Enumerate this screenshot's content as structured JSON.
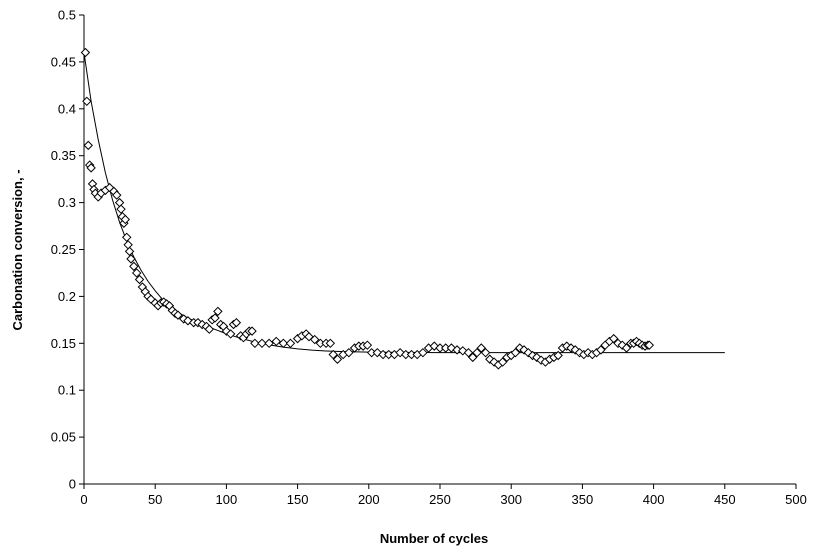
{
  "chart_data": {
    "type": "scatter",
    "title": "",
    "xlabel": "Number of cycles",
    "ylabel": "Carbonation conversion, -",
    "xlim": [
      0,
      500
    ],
    "ylim": [
      0,
      0.5
    ],
    "x_ticks": [
      0,
      50,
      100,
      150,
      200,
      250,
      300,
      350,
      400,
      450,
      500
    ],
    "y_ticks": [
      0,
      0.05,
      0.1,
      0.15,
      0.2,
      0.25,
      0.3,
      0.35,
      0.4,
      0.45,
      0.5
    ],
    "x_tick_labels": [
      "0",
      "50",
      "100",
      "150",
      "200",
      "250",
      "300",
      "350",
      "400",
      "450",
      "500"
    ],
    "y_tick_labels": [
      "0",
      "0.05",
      "0.1",
      "0.15",
      "0.2",
      "0.25",
      "0.3",
      "0.35",
      "0.4",
      "0.45",
      "0.5"
    ],
    "grid": false,
    "legend": "none",
    "marker": "diamond-open",
    "series": [
      {
        "kind": "scatter",
        "points": [
          [
            1,
            0.46
          ],
          [
            2,
            0.408
          ],
          [
            3,
            0.361
          ],
          [
            4,
            0.34
          ],
          [
            5,
            0.337
          ],
          [
            6,
            0.32
          ],
          [
            7,
            0.314
          ],
          [
            8,
            0.31
          ],
          [
            10,
            0.306
          ],
          [
            12,
            0.31
          ],
          [
            15,
            0.313
          ],
          [
            18,
            0.316
          ],
          [
            21,
            0.312
          ],
          [
            23,
            0.308
          ],
          [
            25,
            0.3
          ],
          [
            26,
            0.293
          ],
          [
            27,
            0.285
          ],
          [
            28,
            0.278
          ],
          [
            29,
            0.282
          ],
          [
            30,
            0.263
          ],
          [
            31,
            0.255
          ],
          [
            32,
            0.248
          ],
          [
            33,
            0.24
          ],
          [
            35,
            0.232
          ],
          [
            37,
            0.225
          ],
          [
            39,
            0.218
          ],
          [
            41,
            0.21
          ],
          [
            43,
            0.205
          ],
          [
            45,
            0.2
          ],
          [
            47,
            0.197
          ],
          [
            50,
            0.193
          ],
          [
            52,
            0.19
          ],
          [
            54,
            0.193
          ],
          [
            56,
            0.194
          ],
          [
            58,
            0.192
          ],
          [
            60,
            0.19
          ],
          [
            62,
            0.185
          ],
          [
            64,
            0.182
          ],
          [
            66,
            0.18
          ],
          [
            70,
            0.176
          ],
          [
            73,
            0.174
          ],
          [
            77,
            0.172
          ],
          [
            80,
            0.172
          ],
          [
            83,
            0.17
          ],
          [
            86,
            0.168
          ],
          [
            88,
            0.165
          ],
          [
            90,
            0.175
          ],
          [
            92,
            0.177
          ],
          [
            94,
            0.184
          ],
          [
            96,
            0.17
          ],
          [
            98,
            0.168
          ],
          [
            100,
            0.163
          ],
          [
            103,
            0.16
          ],
          [
            105,
            0.17
          ],
          [
            107,
            0.172
          ],
          [
            110,
            0.158
          ],
          [
            112,
            0.156
          ],
          [
            114,
            0.16
          ],
          [
            116,
            0.163
          ],
          [
            118,
            0.163
          ],
          [
            120,
            0.15
          ],
          [
            125,
            0.15
          ],
          [
            130,
            0.15
          ],
          [
            135,
            0.152
          ],
          [
            140,
            0.15
          ],
          [
            145,
            0.15
          ],
          [
            150,
            0.155
          ],
          [
            153,
            0.158
          ],
          [
            156,
            0.16
          ],
          [
            158,
            0.157
          ],
          [
            162,
            0.154
          ],
          [
            166,
            0.15
          ],
          [
            170,
            0.15
          ],
          [
            173,
            0.15
          ],
          [
            175,
            0.138
          ],
          [
            178,
            0.133
          ],
          [
            182,
            0.138
          ],
          [
            186,
            0.14
          ],
          [
            190,
            0.145
          ],
          [
            193,
            0.147
          ],
          [
            196,
            0.147
          ],
          [
            199,
            0.148
          ],
          [
            202,
            0.14
          ],
          [
            206,
            0.14
          ],
          [
            210,
            0.138
          ],
          [
            214,
            0.138
          ],
          [
            218,
            0.138
          ],
          [
            222,
            0.14
          ],
          [
            226,
            0.138
          ],
          [
            230,
            0.138
          ],
          [
            234,
            0.138
          ],
          [
            238,
            0.14
          ],
          [
            242,
            0.145
          ],
          [
            246,
            0.147
          ],
          [
            250,
            0.145
          ],
          [
            254,
            0.145
          ],
          [
            258,
            0.145
          ],
          [
            262,
            0.143
          ],
          [
            266,
            0.142
          ],
          [
            270,
            0.14
          ],
          [
            273,
            0.135
          ],
          [
            276,
            0.14
          ],
          [
            279,
            0.145
          ],
          [
            282,
            0.14
          ],
          [
            285,
            0.133
          ],
          [
            288,
            0.13
          ],
          [
            291,
            0.127
          ],
          [
            294,
            0.13
          ],
          [
            297,
            0.135
          ],
          [
            300,
            0.137
          ],
          [
            303,
            0.14
          ],
          [
            306,
            0.145
          ],
          [
            309,
            0.143
          ],
          [
            312,
            0.14
          ],
          [
            315,
            0.137
          ],
          [
            318,
            0.135
          ],
          [
            321,
            0.132
          ],
          [
            324,
            0.13
          ],
          [
            327,
            0.133
          ],
          [
            330,
            0.135
          ],
          [
            333,
            0.137
          ],
          [
            336,
            0.145
          ],
          [
            339,
            0.147
          ],
          [
            342,
            0.145
          ],
          [
            345,
            0.143
          ],
          [
            348,
            0.14
          ],
          [
            351,
            0.138
          ],
          [
            354,
            0.14
          ],
          [
            357,
            0.138
          ],
          [
            360,
            0.14
          ],
          [
            363,
            0.143
          ],
          [
            366,
            0.148
          ],
          [
            369,
            0.152
          ],
          [
            372,
            0.155
          ],
          [
            375,
            0.15
          ],
          [
            378,
            0.148
          ],
          [
            381,
            0.145
          ],
          [
            384,
            0.15
          ],
          [
            386,
            0.15
          ],
          [
            388,
            0.152
          ],
          [
            390,
            0.15
          ],
          [
            392,
            0.148
          ],
          [
            394,
            0.147
          ],
          [
            396,
            0.148
          ],
          [
            397,
            0.148
          ]
        ]
      },
      {
        "kind": "line",
        "x": [
          0,
          5,
          10,
          15,
          20,
          25,
          30,
          35,
          40,
          45,
          50,
          55,
          60,
          65,
          70,
          75,
          80,
          90,
          100,
          110,
          120,
          130,
          140,
          150,
          160,
          170,
          180,
          200,
          250,
          300,
          350,
          400,
          450
        ],
        "values": [
          0.46,
          0.408,
          0.367,
          0.332,
          0.303,
          0.279,
          0.259,
          0.242,
          0.228,
          0.216,
          0.206,
          0.197,
          0.19,
          0.184,
          0.1795,
          0.1755,
          0.1722,
          0.166,
          0.1602,
          0.1553,
          0.1514,
          0.1483,
          0.1459,
          0.144,
          0.1427,
          0.1418,
          0.1412,
          0.1406,
          0.1401,
          0.14,
          0.14,
          0.14,
          0.14
        ]
      }
    ]
  }
}
